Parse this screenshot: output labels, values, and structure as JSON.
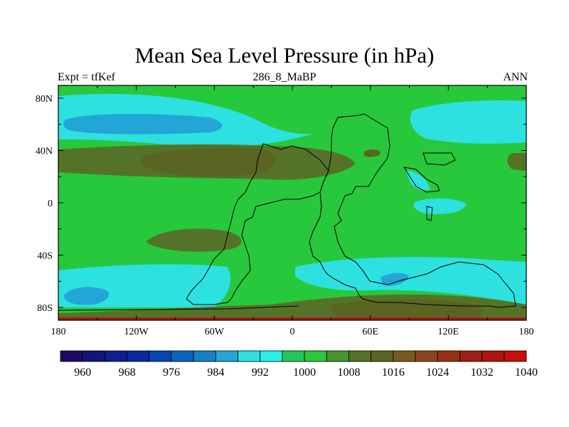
{
  "title": "Mean Sea Level Pressure (in hPa)",
  "left_string": "Expt = tfKef",
  "center_string": "286_8_MaBP",
  "right_string": "ANN",
  "lat_labels": [
    "80N",
    "40N",
    "0",
    "40S",
    "80S"
  ],
  "lon_labels": [
    "180",
    "120W",
    "60W",
    "0",
    "60E",
    "120E",
    "180"
  ],
  "colorbar": {
    "colors": [
      "#1e0a64",
      "#14147d",
      "#0f1e91",
      "#0a28a0",
      "#0546b4",
      "#0a64be",
      "#1482c8",
      "#23a5d7",
      "#2de1e1",
      "#28f0e6",
      "#1ec85a",
      "#28c83c",
      "#46962d",
      "#557328",
      "#5a6423",
      "#785a1e",
      "#8c461e",
      "#963214",
      "#a01e14",
      "#b4140f",
      "#c80f0a"
    ],
    "labels": [
      "960",
      "968",
      "976",
      "984",
      "992",
      "1000",
      "1008",
      "1016",
      "1024",
      "1032",
      "1040"
    ]
  },
  "fill_colors": {
    "background": "#28c83c",
    "cyan": "#2de1e1",
    "blue": "#23a5d7",
    "olive": "#557328",
    "dark_olive": "#5a6423",
    "red": "#a01e14"
  }
}
